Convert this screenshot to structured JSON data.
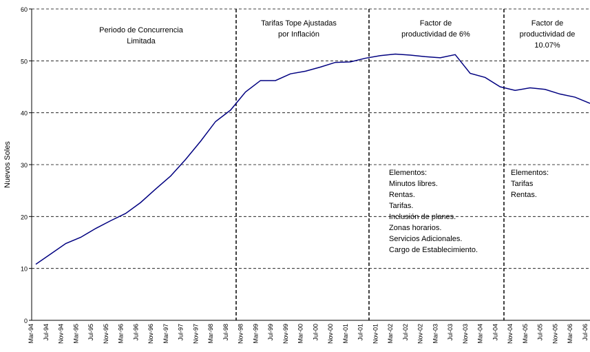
{
  "chart_data": {
    "type": "line",
    "y_label": "Nuevos Soles",
    "categories": [
      "Mar-94",
      "Jul-94",
      "Nov-94",
      "Mar-95",
      "Jul-95",
      "Nov-95",
      "Mar-96",
      "Jul-96",
      "Nov-96",
      "Mar-97",
      "Jul-97",
      "Nov-97",
      "Mar-98",
      "Jul-98",
      "Nov-98",
      "Mar-99",
      "Jul-99",
      "Nov-99",
      "Mar-00",
      "Jul-00",
      "Nov-00",
      "Mar-01",
      "Jul-01",
      "Nov-01",
      "Mar-02",
      "Jul-02",
      "Nov-02",
      "Mar-03",
      "Jul-03",
      "Nov-03",
      "Mar-04",
      "Jul-04",
      "Nov-04",
      "Mar-05",
      "Jul-05",
      "Nov-05",
      "Mar-06",
      "Jul-06"
    ],
    "series": [
      {
        "color": "#000080",
        "values": [
          10.8,
          12.8,
          14.8,
          16.0,
          17.7,
          19.2,
          20.6,
          22.7,
          25.3,
          27.8,
          31,
          34.5,
          38.3,
          40.5,
          44,
          46.2,
          46.2,
          47.5,
          48,
          48.8,
          49.7,
          49.8,
          50.5,
          51,
          51.3,
          51.1,
          50.8,
          50.6,
          51.2,
          47.6,
          46.8,
          45,
          44.3,
          44.8,
          44.5,
          43.6,
          43,
          41.8
        ]
      }
    ],
    "ylim": [
      0,
      60
    ],
    "yticks": [
      0,
      10,
      20,
      30,
      40,
      50,
      60
    ],
    "grid": true,
    "periods": [
      {
        "title": [
          "Periodo de Concurrencia",
          "Limitada"
        ]
      },
      {
        "title": [
          "Tarifas Tope Ajustadas",
          "por Inflación"
        ]
      },
      {
        "title": [
          "Factor de",
          "productividad de 6%"
        ],
        "elements": [
          "Elementos:",
          "Minutos libres.",
          "Rentas.",
          "Tarifas.",
          "Inclusión de planes.",
          "Zonas horarios.",
          "Servicios Adicionales.",
          "Cargo de Establecimiento."
        ]
      },
      {
        "title": [
          "Factor de",
          "productividad de",
          "10.07%"
        ],
        "elements": [
          "Elementos:",
          "Tarifas",
          "Rentas."
        ]
      }
    ]
  }
}
